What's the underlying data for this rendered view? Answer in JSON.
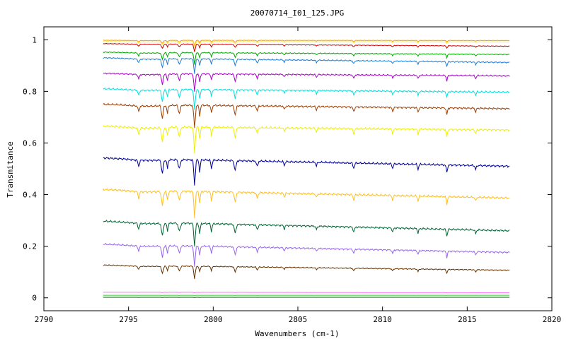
{
  "chart_data": {
    "type": "line",
    "title": "20070714_I01_125.JPG",
    "xlabel": "Wavenumbers (cm-1)",
    "ylabel": "Transmitance",
    "xlim": [
      2790,
      2820
    ],
    "ylim": [
      -0.05,
      1.05
    ],
    "x_ticks": [
      2790,
      2795,
      2800,
      2805,
      2810,
      2815,
      2820
    ],
    "x_tick_labels": [
      "2790",
      "2795",
      "2800",
      "2805",
      "2810",
      "2815",
      "2820"
    ],
    "y_ticks": [
      0,
      0.2,
      0.4,
      0.6,
      0.8,
      1
    ],
    "y_tick_labels": [
      "0",
      "0.2",
      "0.4",
      "0.6",
      "0.8",
      "1"
    ],
    "grid": false,
    "legend": "none",
    "x_range_of_data": [
      2793.5,
      2817.5
    ],
    "series": [
      {
        "color": "#ff9900",
        "start": 0.998,
        "end": 0.997,
        "depth": 0.02
      },
      {
        "color": "#ffe633",
        "start": 0.993,
        "end": 0.992,
        "depth": 0.02
      },
      {
        "color": "#cc0000",
        "start": 0.985,
        "end": 0.975,
        "depth": 0.03
      },
      {
        "color": "#00aa00",
        "start": 0.952,
        "end": 0.943,
        "depth": 0.045
      },
      {
        "color": "#1e7fd8",
        "start": 0.93,
        "end": 0.912,
        "depth": 0.06
      },
      {
        "color": "#aa00cc",
        "start": 0.87,
        "end": 0.86,
        "depth": 0.07
      },
      {
        "color": "#00e0e0",
        "start": 0.81,
        "end": 0.797,
        "depth": 0.08
      },
      {
        "color": "#a03e00",
        "start": 0.75,
        "end": 0.733,
        "depth": 0.09
      },
      {
        "color": "#f0f000",
        "start": 0.665,
        "end": 0.65,
        "depth": 0.1
      },
      {
        "color": "#000099",
        "start": 0.542,
        "end": 0.51,
        "depth": 0.1
      },
      {
        "color": "#ffc020",
        "start": 0.42,
        "end": 0.387,
        "depth": 0.1
      },
      {
        "color": "#006633",
        "start": 0.297,
        "end": 0.26,
        "depth": 0.09
      },
      {
        "color": "#9966ee",
        "start": 0.208,
        "end": 0.176,
        "depth": 0.08
      },
      {
        "color": "#663300",
        "start": 0.127,
        "end": 0.107,
        "depth": 0.05
      },
      {
        "color": "#ff66ff",
        "start": 0.022,
        "end": 0.02,
        "depth": 0.002
      },
      {
        "color": "#33cc33",
        "start": 0.01,
        "end": 0.01,
        "depth": 0.001
      },
      {
        "color": "#006600",
        "start": 0.002,
        "end": 0.002,
        "depth": 0.001
      }
    ]
  }
}
